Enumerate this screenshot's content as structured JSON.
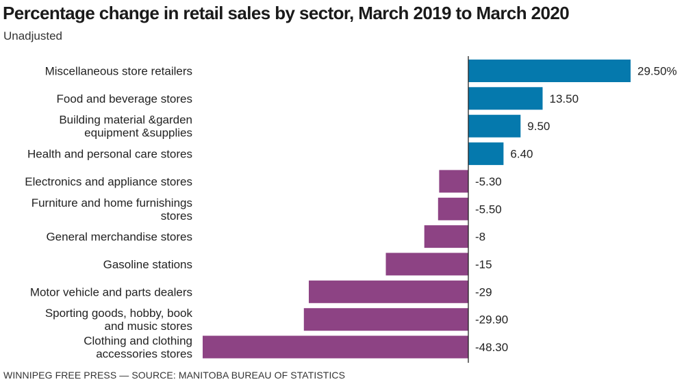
{
  "title": "Percentage change in retail sales by sector, March 2019 to March 2020",
  "subtitle": "Unadjusted",
  "footer": "WINNIPEG FREE PRESS — SOURCE: MANITOBA BUREAU OF STATISTICS",
  "colors": {
    "positive": "#0579ad",
    "negative": "#8d4384",
    "axis": "#222222",
    "text": "#222222"
  },
  "chart_data": {
    "type": "bar",
    "orientation": "horizontal",
    "title": "Percentage change in retail sales by sector, March 2019 to March 2020",
    "subtitle": "Unadjusted",
    "xlabel": "",
    "ylabel": "",
    "xlim": [
      -48.3,
      29.5
    ],
    "grid": false,
    "categories": [
      [
        "Miscellaneous store retailers"
      ],
      [
        "Food and beverage stores"
      ],
      [
        "Building material &garden",
        "equipment &supplies"
      ],
      [
        "Health and personal care stores"
      ],
      [
        "Electronics and appliance stores"
      ],
      [
        "Furniture and home furnishings",
        "stores"
      ],
      [
        "General merchandise stores"
      ],
      [
        "Gasoline stations"
      ],
      [
        "Motor vehicle and parts dealers"
      ],
      [
        "Sporting goods, hobby, book",
        "and music stores"
      ],
      [
        "Clothing and clothing",
        "accessories stores"
      ]
    ],
    "values": [
      29.5,
      13.5,
      9.5,
      6.4,
      -5.3,
      -5.5,
      -8,
      -15,
      -29,
      -29.9,
      -48.3
    ],
    "value_labels": [
      "29.50%",
      "13.50",
      "9.50",
      "6.40",
      "-5.30",
      "-5.50",
      "-8",
      "-15",
      "-29",
      "-29.90",
      "-48.30"
    ]
  }
}
